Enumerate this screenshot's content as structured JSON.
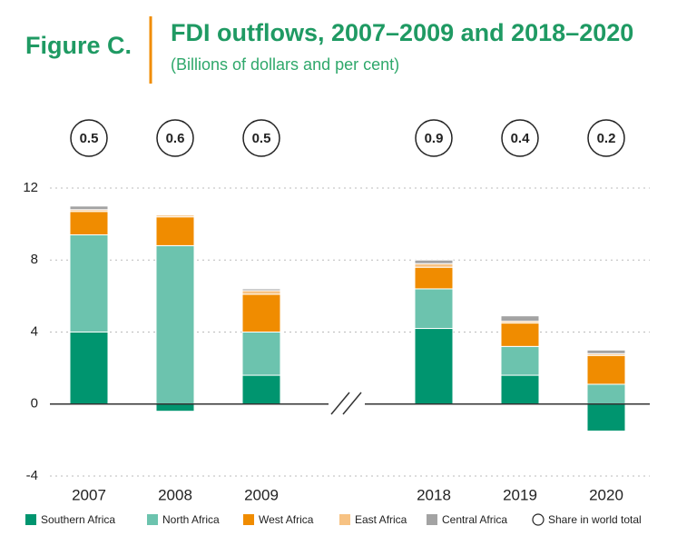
{
  "figure_label": "Figure C.",
  "chart_data": {
    "type": "stacked-bar",
    "title": "FDI outflows, 2007–2009 and 2018–2020",
    "subtitle": "(Billions of dollars and per cent)",
    "categories": [
      "2007",
      "2008",
      "2009",
      "2018",
      "2019",
      "2020"
    ],
    "series": [
      {
        "name": "Southern Africa",
        "color": "#00956f",
        "values": [
          4.0,
          -0.4,
          1.6,
          4.2,
          1.6,
          -1.5
        ]
      },
      {
        "name": "North Africa",
        "color": "#6cc3ae",
        "values": [
          5.4,
          8.8,
          2.4,
          2.2,
          1.6,
          1.1
        ]
      },
      {
        "name": "West Africa",
        "color": "#f08c00",
        "values": [
          1.3,
          1.6,
          2.1,
          1.2,
          1.3,
          1.6
        ]
      },
      {
        "name": "East Africa",
        "color": "#f7c283",
        "values": [
          0.1,
          0.1,
          0.2,
          0.2,
          0.1,
          0.1
        ]
      },
      {
        "name": "Central Africa",
        "color": "#a3a3a3",
        "values": [
          0.2,
          0.0,
          0.1,
          0.2,
          0.3,
          0.2
        ]
      }
    ],
    "share": {
      "name": "Share in world total",
      "values": [
        0.5,
        0.6,
        0.5,
        0.9,
        0.4,
        0.2
      ]
    },
    "ylim": [
      -4,
      12
    ],
    "yticks": [
      -4,
      0,
      4,
      8,
      12
    ],
    "grid": true
  }
}
